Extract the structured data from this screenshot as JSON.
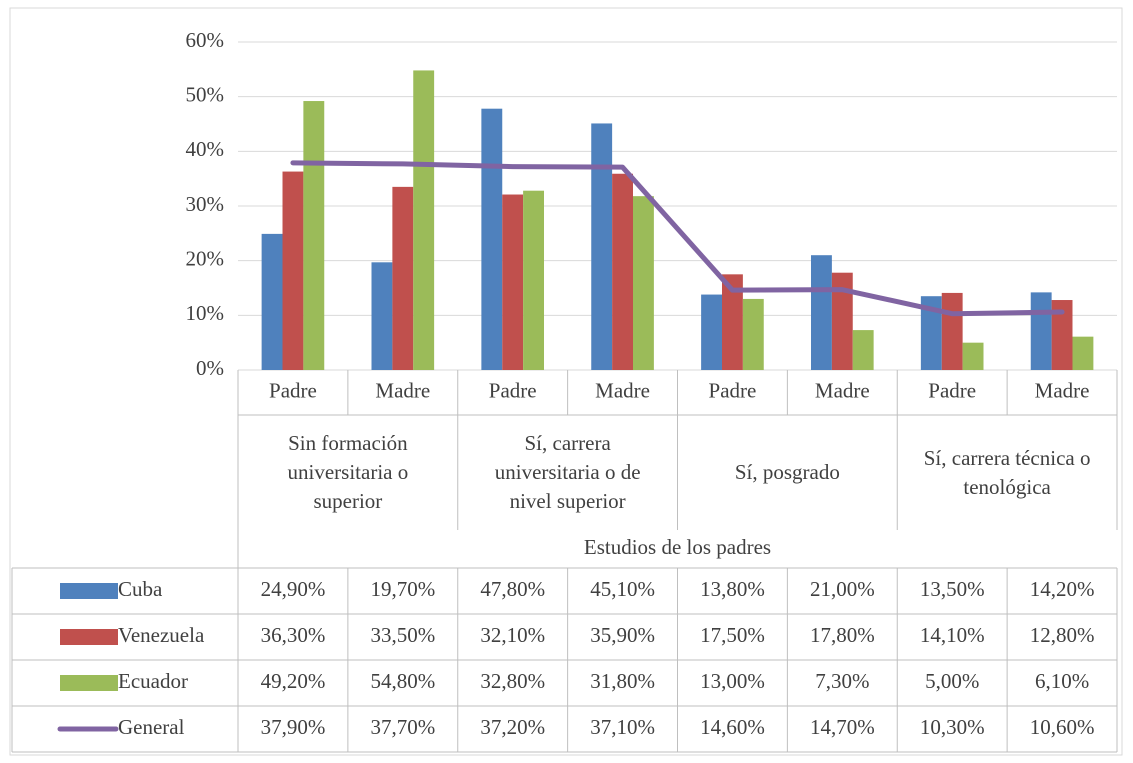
{
  "chart_data": {
    "type": "bar",
    "categories": [
      "Padre",
      "Madre",
      "Padre",
      "Madre",
      "Padre",
      "Madre",
      "Padre",
      "Madre"
    ],
    "groups": [
      "Sin formación universitaria o superior",
      "Sí, carrera universitaria o de nivel superior",
      "Sí, posgrado",
      "Sí, carrera técnica o tenológica"
    ],
    "x_label": "Estudios de los padres",
    "ylim": [
      0,
      60
    ],
    "yticks": [
      {
        "value": 0,
        "label": "0%"
      },
      {
        "value": 10,
        "label": "10%"
      },
      {
        "value": 20,
        "label": "20%"
      },
      {
        "value": 30,
        "label": "30%"
      },
      {
        "value": 40,
        "label": "40%"
      },
      {
        "value": 50,
        "label": "50%"
      },
      {
        "value": 60,
        "label": "60%"
      }
    ],
    "grid": true,
    "series": [
      {
        "name": "Cuba",
        "color": "#4f81bd",
        "values": [
          24.9,
          19.7,
          47.8,
          45.1,
          13.8,
          21.0,
          13.5,
          14.2
        ],
        "value_labels": [
          "24,90%",
          "19,70%",
          "47,80%",
          "45,10%",
          "13,80%",
          "21,00%",
          "13,50%",
          "14,20%"
        ]
      },
      {
        "name": "Venezuela",
        "color": "#c0504d",
        "values": [
          36.3,
          33.5,
          32.1,
          35.9,
          17.5,
          17.8,
          14.1,
          12.8
        ],
        "value_labels": [
          "36,30%",
          "33,50%",
          "32,10%",
          "35,90%",
          "17,50%",
          "17,80%",
          "14,10%",
          "12,80%"
        ]
      },
      {
        "name": "Ecuador",
        "color": "#9bbb59",
        "values": [
          49.2,
          54.8,
          32.8,
          31.8,
          13.0,
          7.3,
          5.0,
          6.1
        ],
        "value_labels": [
          "49,20%",
          "54,80%",
          "32,80%",
          "31,80%",
          "13,00%",
          "7,30%",
          "5,00%",
          "6,10%"
        ]
      },
      {
        "name": "General",
        "type": "line",
        "color": "#8064a2",
        "values": [
          37.9,
          37.7,
          37.2,
          37.1,
          14.6,
          14.7,
          10.3,
          10.6
        ],
        "value_labels": [
          "37,90%",
          "37,70%",
          "37,20%",
          "37,10%",
          "14,60%",
          "14,70%",
          "10,30%",
          "10,60%"
        ]
      }
    ]
  }
}
